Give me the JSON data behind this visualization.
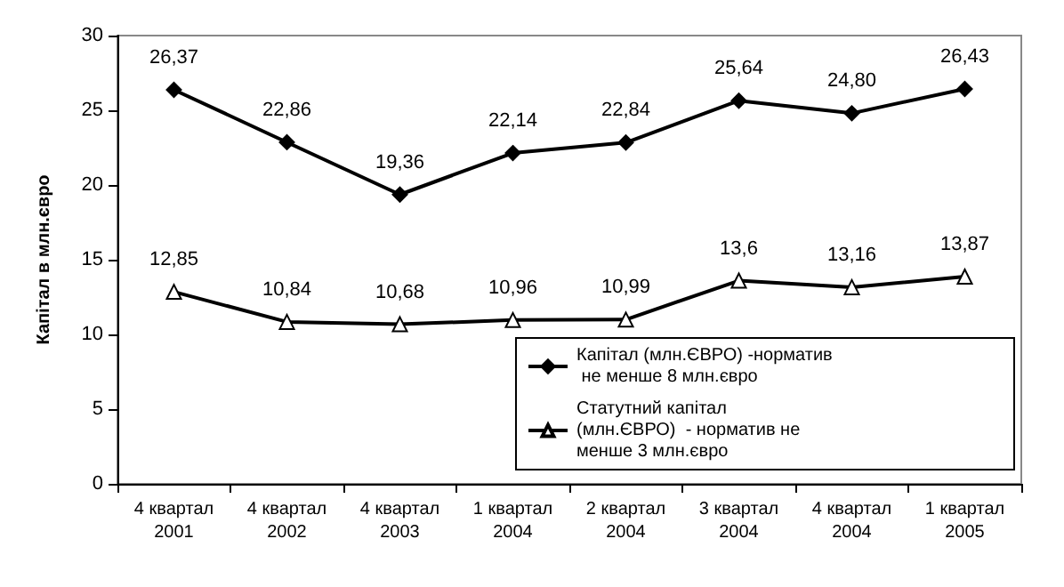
{
  "chart_data": {
    "type": "line",
    "ylabel": "Капітал в млн.євро",
    "categories": [
      "4 квартал\n2001",
      "4 квартал\n2002",
      "4 квартал\n2003",
      "1 квартал\n2004",
      "2 квартал\n2004",
      "3 квартал\n2004",
      "4 квартал\n2004",
      "1 квартал\n2005"
    ],
    "series": [
      {
        "name": "Капітал (млн.ЄВРО) -норматив не менше 8 млн.євро",
        "color": "#000000",
        "marker": "diamond",
        "values": [
          26.37,
          22.86,
          19.36,
          22.14,
          22.84,
          25.64,
          24.8,
          26.43
        ],
        "value_labels": [
          "26,37",
          "22,86",
          "19,36",
          "22,14",
          "22,84",
          "25,64",
          "24,80",
          "26,43"
        ]
      },
      {
        "name": "Статутний капітал (млн.ЄВРО)  - норматив не менше 3 млн.євро",
        "color": "#000000",
        "marker": "triangle",
        "values": [
          12.85,
          10.84,
          10.68,
          10.96,
          10.99,
          13.6,
          13.16,
          13.87
        ],
        "value_labels": [
          "12,85",
          "10,84",
          "10,68",
          "10,96",
          "10,99",
          "13,6",
          "13,16",
          "13,87"
        ]
      }
    ],
    "ylim": [
      0,
      30
    ],
    "yticks": [
      0,
      5,
      10,
      15,
      20,
      25,
      30
    ],
    "grid": false,
    "legend": "bottom right"
  }
}
